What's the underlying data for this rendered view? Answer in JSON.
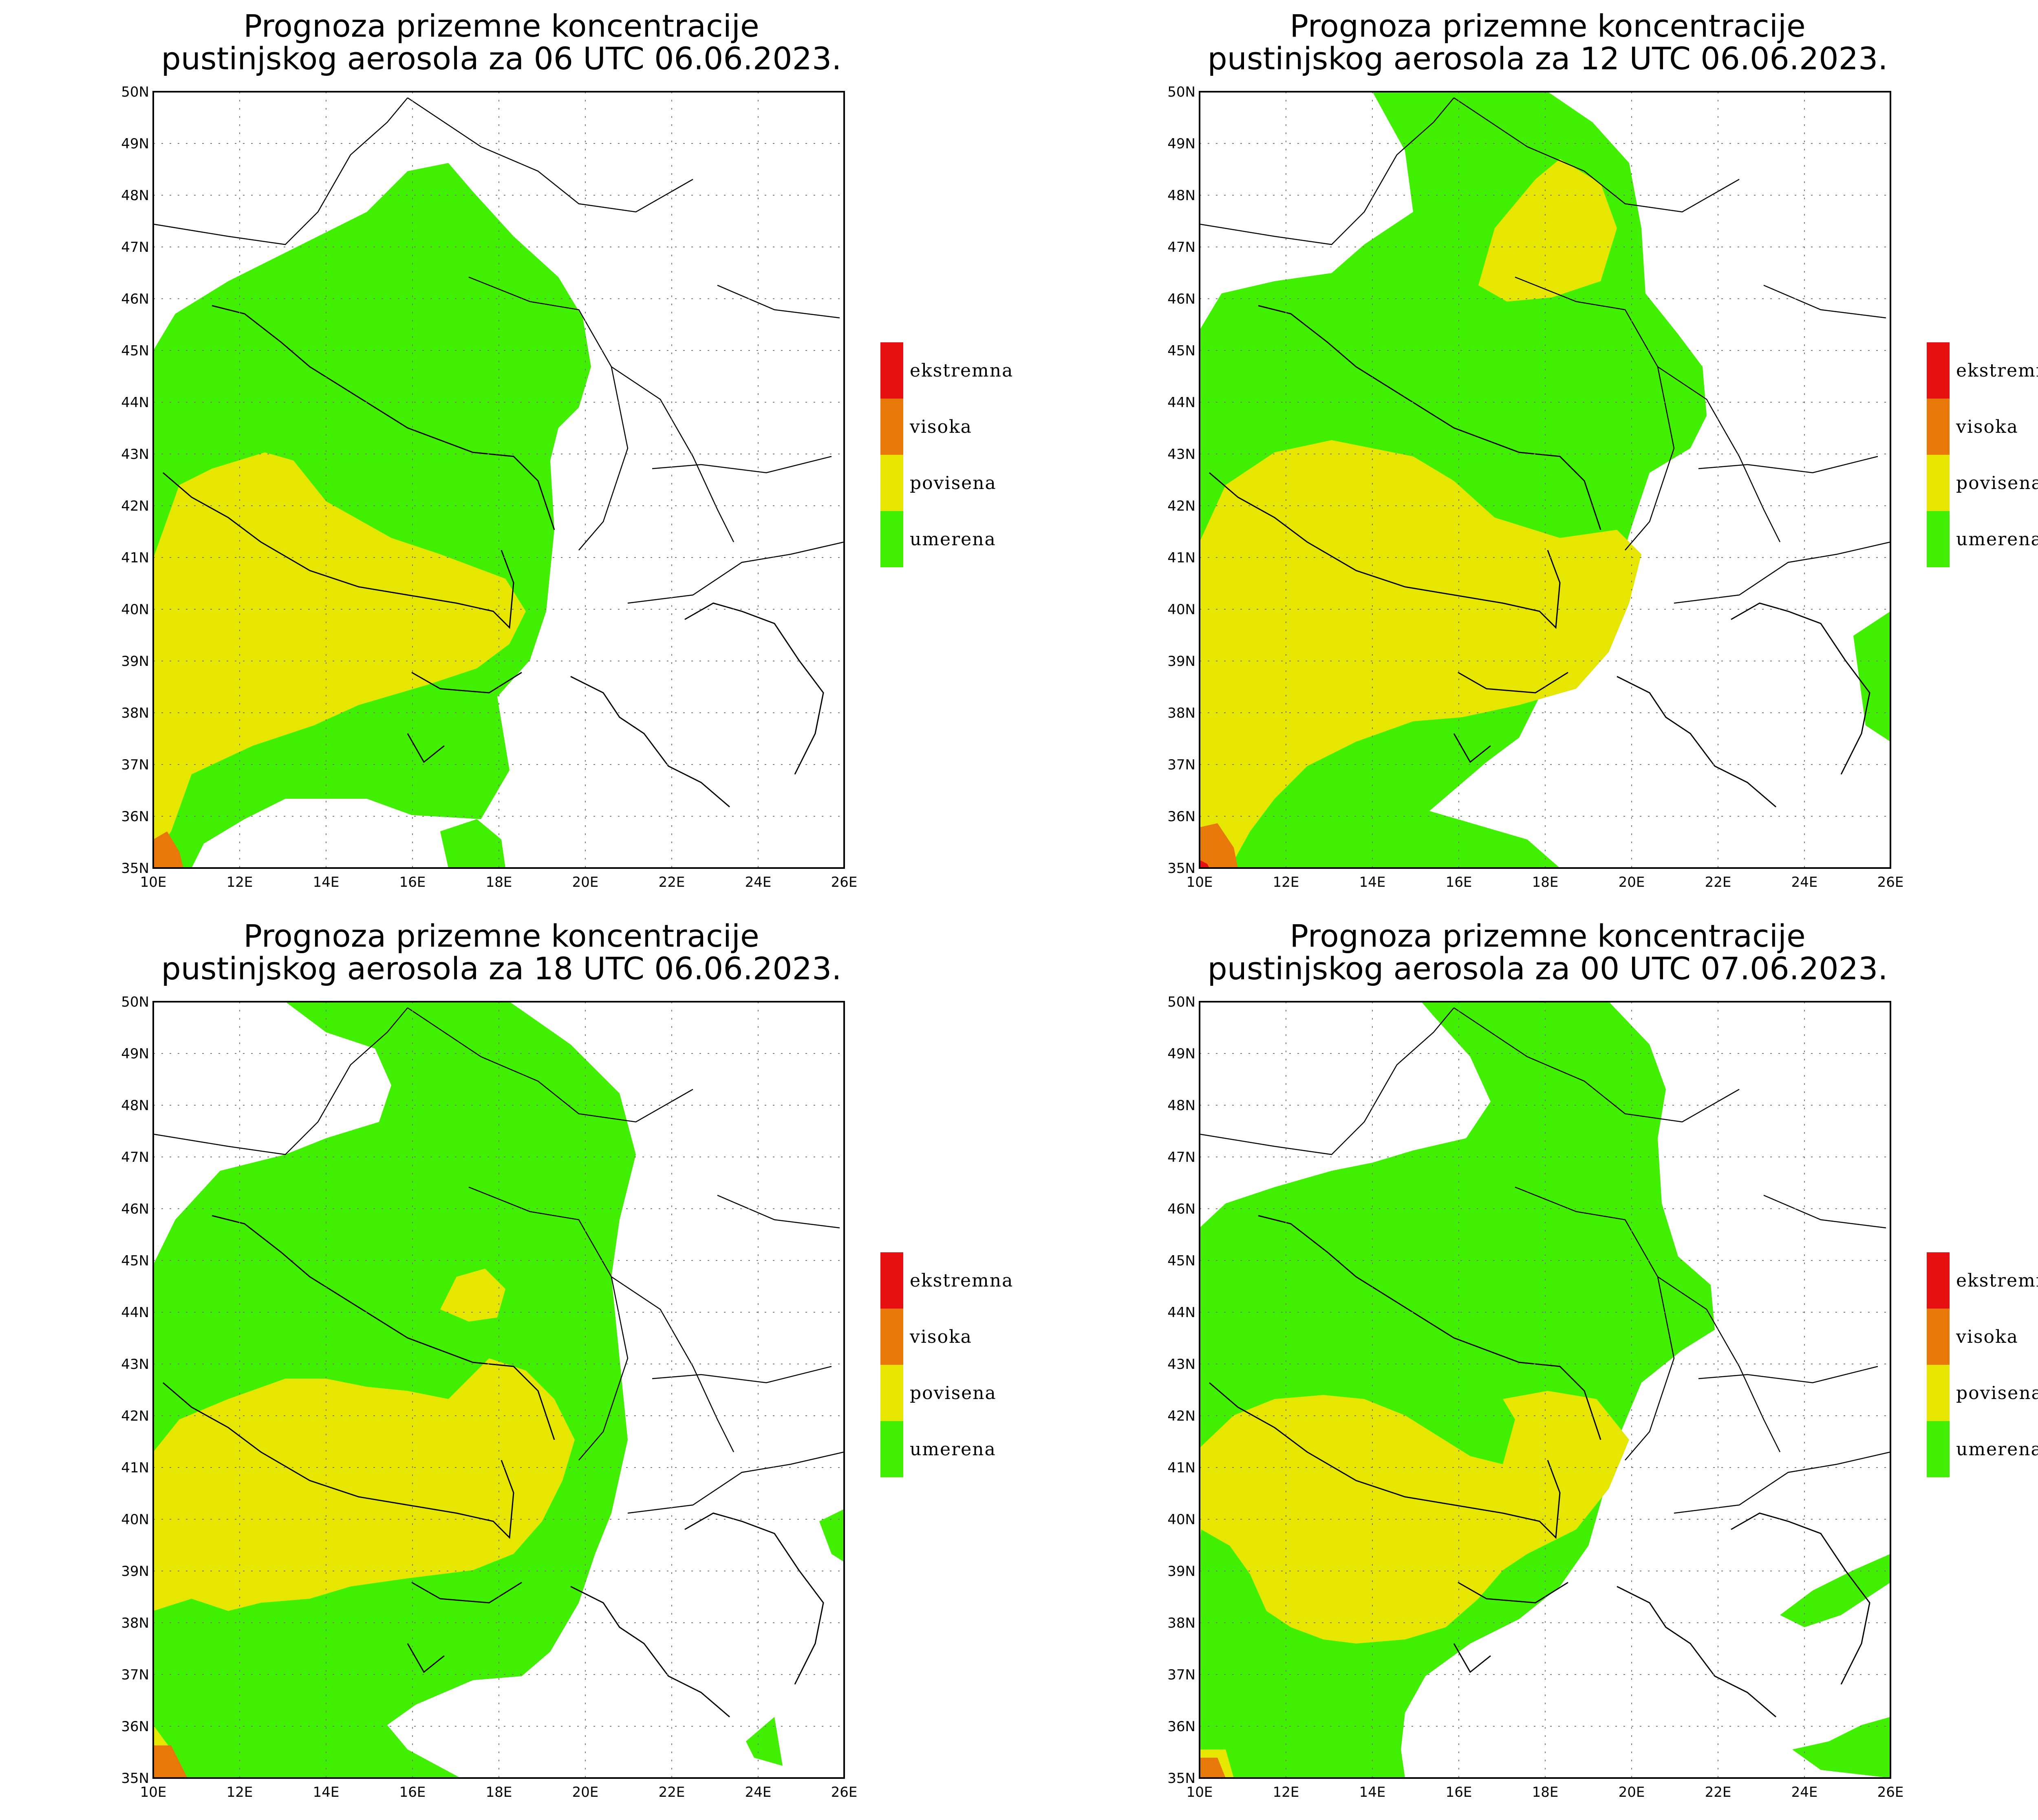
{
  "panels": [
    {
      "title_line1": "Prognoza prizemne koncentracije",
      "title_line2": "pustinjskog aerosola za 06 UTC 06.06.2023."
    },
    {
      "title_line1": "Prognoza prizemne koncentracije",
      "title_line2": "pustinjskog aerosola za 12 UTC 06.06.2023."
    },
    {
      "title_line1": "Prognoza prizemne koncentracije",
      "title_line2": "pustinjskog aerosola za 18 UTC 06.06.2023."
    },
    {
      "title_line1": "Prognoza prizemne koncentracije",
      "title_line2": "pustinjskog aerosola za 00 UTC 07.06.2023."
    }
  ],
  "axes": {
    "lat_ticks": [
      "50N",
      "49N",
      "48N",
      "47N",
      "46N",
      "45N",
      "44N",
      "43N",
      "42N",
      "41N",
      "40N",
      "39N",
      "38N",
      "37N",
      "36N",
      "35N"
    ],
    "lon_ticks": [
      "10E",
      "12E",
      "14E",
      "16E",
      "18E",
      "20E",
      "22E",
      "24E",
      "26E"
    ]
  },
  "legend": [
    {
      "label": "ekstremna",
      "color": "#e61010"
    },
    {
      "label": "visoka",
      "color": "#e8780a"
    },
    {
      "label": "povisena",
      "color": "#e6e600"
    },
    {
      "label": "umerena",
      "color": "#40f000"
    }
  ]
}
